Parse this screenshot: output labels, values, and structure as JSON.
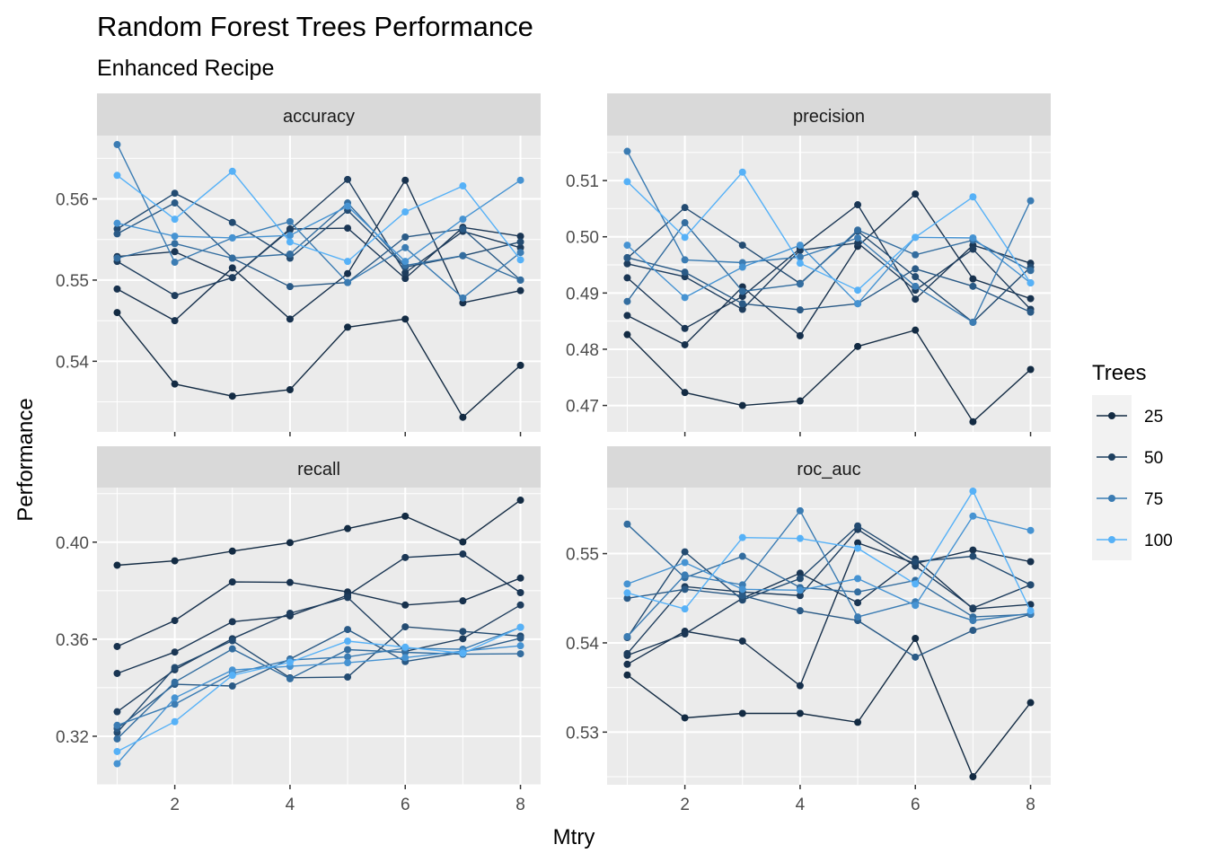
{
  "chart_data": {
    "type": "line",
    "title": "Random Forest Trees Performance",
    "subtitle": "Enhanced Recipe",
    "xlabel": "Mtry",
    "ylabel": "Performance",
    "legend": {
      "title": "Trees",
      "entries": [
        "25",
        "50",
        "75",
        "100"
      ],
      "colors": [
        "#132b43",
        "#1d3f5f",
        "#3b7cb3",
        "#56b1f7"
      ],
      "placement": "right"
    },
    "x": [
      1,
      2,
      3,
      4,
      5,
      6,
      7,
      8
    ],
    "xticks": [
      2,
      4,
      6,
      8
    ],
    "facets": [
      {
        "name": "accuracy",
        "ylim": [
          0.5313,
          0.5678
        ],
        "yticks": [
          0.54,
          0.55,
          0.56
        ],
        "ytick_labels": [
          "0.54",
          "0.55",
          "0.56"
        ],
        "series": [
          {
            "name": "25",
            "color": "#132b43",
            "values": [
              0.546,
              0.5372,
              0.5357,
              0.5365,
              0.5442,
              0.5452,
              0.5331,
              0.5395
            ]
          },
          {
            "name": "25",
            "color": "#17314d",
            "values": [
              0.5489,
              0.545,
              0.5515,
              0.5452,
              0.5508,
              0.5623,
              0.5472,
              0.5487
            ]
          },
          {
            "name": "25",
            "color": "#1a3654",
            "values": [
              0.5529,
              0.5535,
              0.5503,
              0.5563,
              0.5564,
              0.5502,
              0.5565,
              0.5554
            ]
          },
          {
            "name": "50",
            "color": "#1e3d5d",
            "values": [
              0.5523,
              0.5481,
              0.5503,
              0.5562,
              0.5624,
              0.5509,
              0.556,
              0.554
            ]
          },
          {
            "name": "50",
            "color": "#234b71",
            "values": [
              0.5563,
              0.5607,
              0.5571,
              0.5527,
              0.5586,
              0.5516,
              0.553,
              0.5547
            ]
          },
          {
            "name": "50",
            "color": "#2a5a86",
            "values": [
              0.5557,
              0.5595,
              0.5527,
              0.5492,
              0.5497,
              0.5553,
              0.5563,
              0.55
            ]
          },
          {
            "name": "75",
            "color": "#336d9f",
            "values": [
              0.5527,
              0.5545,
              0.5527,
              0.5532,
              0.5595,
              0.5518,
              0.553,
              0.55
            ]
          },
          {
            "name": "75",
            "color": "#3b7cb3",
            "values": [
              0.5667,
              0.5522,
              0.5552,
              0.5572,
              0.5497,
              0.554,
              0.5478,
              0.5534
            ]
          },
          {
            "name": "100",
            "color": "#4693d2",
            "values": [
              0.557,
              0.5554,
              0.5552,
              0.5555,
              0.5591,
              0.5523,
              0.5575,
              0.5623
            ]
          },
          {
            "name": "100",
            "color": "#56b1f7",
            "values": [
              0.5629,
              0.5575,
              0.5634,
              0.5547,
              0.5523,
              0.5584,
              0.5616,
              0.5525
            ]
          }
        ]
      },
      {
        "name": "precision",
        "ylim": [
          0.4653,
          0.518
        ],
        "yticks": [
          0.47,
          0.48,
          0.49,
          0.5,
          0.51
        ],
        "ytick_labels": [
          "0.47",
          "0.48",
          "0.49",
          "0.50",
          "0.51"
        ],
        "series": [
          {
            "name": "25",
            "color": "#132b43",
            "values": [
              0.4826,
              0.4723,
              0.47,
              0.4708,
              0.4805,
              0.4834,
              0.4671,
              0.4764
            ]
          },
          {
            "name": "25",
            "color": "#17314d",
            "values": [
              0.486,
              0.4808,
              0.4911,
              0.4824,
              0.4983,
              0.5076,
              0.4925,
              0.489
            ]
          },
          {
            "name": "25",
            "color": "#1a3654",
            "values": [
              0.4927,
              0.4837,
              0.4894,
              0.4979,
              0.5057,
              0.4889,
              0.4985,
              0.4953
            ]
          },
          {
            "name": "50",
            "color": "#1e3d5d",
            "values": [
              0.4952,
              0.4929,
              0.4871,
              0.4976,
              0.4989,
              0.4905,
              0.4978,
              0.4871
            ]
          },
          {
            "name": "50",
            "color": "#234b71",
            "values": [
              0.4962,
              0.5052,
              0.4985,
              0.4917,
              0.501,
              0.4929,
              0.4848,
              0.4946
            ]
          },
          {
            "name": "50",
            "color": "#2a5a86",
            "values": [
              0.4963,
              0.4937,
              0.4881,
              0.487,
              0.4881,
              0.4943,
              0.4912,
              0.4866
            ]
          },
          {
            "name": "75",
            "color": "#336d9f",
            "values": [
              0.4885,
              0.5025,
              0.4903,
              0.4916,
              0.5012,
              0.4968,
              0.4994,
              0.494
            ]
          },
          {
            "name": "75",
            "color": "#3b7cb3",
            "values": [
              0.5152,
              0.4959,
              0.4954,
              0.4964,
              0.4998,
              0.4912,
              0.4848,
              0.5064
            ]
          },
          {
            "name": "100",
            "color": "#4693d2",
            "values": [
              0.4985,
              0.4892,
              0.4946,
              0.4985,
              0.4881,
              0.4999,
              0.4998,
              0.4918
            ]
          },
          {
            "name": "100",
            "color": "#56b1f7",
            "values": [
              0.5098,
              0.4999,
              0.5115,
              0.4953,
              0.4905,
              0.4999,
              0.5071,
              0.4918
            ]
          }
        ]
      },
      {
        "name": "recall",
        "ylim": [
          0.3,
          0.4225
        ],
        "yticks": [
          0.32,
          0.36,
          0.4
        ],
        "ytick_labels": [
          "0.32",
          "0.36",
          "0.40"
        ],
        "series": [
          {
            "name": "25",
            "color": "#132b43",
            "values": [
              0.3905,
              0.3923,
              0.3963,
              0.3998,
              0.4056,
              0.4107,
              0.4001,
              0.4173
            ]
          },
          {
            "name": "25",
            "color": "#17314d",
            "values": [
              0.357,
              0.3677,
              0.3836,
              0.3834,
              0.3795,
              0.3741,
              0.3758,
              0.3852
            ]
          },
          {
            "name": "25",
            "color": "#1a3654",
            "values": [
              0.3459,
              0.3547,
              0.3672,
              0.3696,
              0.3781,
              0.3937,
              0.3951,
              0.3792
            ]
          },
          {
            "name": "50",
            "color": "#1e3d5d",
            "values": [
              0.3301,
              0.3474,
              0.3602,
              0.3707,
              0.3772,
              0.355,
              0.3602,
              0.3741
            ]
          },
          {
            "name": "50",
            "color": "#234b71",
            "values": [
              0.3215,
              0.3483,
              0.3594,
              0.3441,
              0.3444,
              0.3651,
              0.3632,
              0.3613
            ]
          },
          {
            "name": "50",
            "color": "#2a5a86",
            "values": [
              0.3232,
              0.3414,
              0.3407,
              0.3518,
              0.364,
              0.3508,
              0.3546,
              0.3604
            ]
          },
          {
            "name": "75",
            "color": "#336d9f",
            "values": [
              0.3189,
              0.3423,
              0.356,
              0.3437,
              0.3557,
              0.3546,
              0.3538,
              0.354
            ]
          },
          {
            "name": "75",
            "color": "#3b7cb3",
            "values": [
              0.3245,
              0.3332,
              0.3459,
              0.3514,
              0.3527,
              0.3563,
              0.3559,
              0.3649
            ]
          },
          {
            "name": "100",
            "color": "#4693d2",
            "values": [
              0.3087,
              0.3358,
              0.3473,
              0.3488,
              0.3503,
              0.3524,
              0.3551,
              0.3573
            ]
          },
          {
            "name": "100",
            "color": "#56b1f7",
            "values": [
              0.3137,
              0.326,
              0.3451,
              0.3505,
              0.3592,
              0.3567,
              0.3542,
              0.3649
            ]
          }
        ]
      },
      {
        "name": "roc_auc",
        "ylim": [
          0.5241,
          0.5574
        ],
        "yticks": [
          0.53,
          0.54,
          0.55
        ],
        "ytick_labels": [
          "0.53",
          "0.54",
          "0.55"
        ],
        "series": [
          {
            "name": "25",
            "color": "#132b43",
            "values": [
              0.5364,
              0.5316,
              0.5321,
              0.5321,
              0.5311,
              0.5405,
              0.525,
              0.5333
            ]
          },
          {
            "name": "25",
            "color": "#17314d",
            "values": [
              0.5376,
              0.5413,
              0.5402,
              0.5352,
              0.5512,
              0.5489,
              0.5504,
              0.5491
            ]
          },
          {
            "name": "25",
            "color": "#1a3654",
            "values": [
              0.5386,
              0.541,
              0.545,
              0.5478,
              0.5445,
              0.5494,
              0.5438,
              0.5443
            ]
          },
          {
            "name": "50",
            "color": "#1e3d5d",
            "values": [
              0.5388,
              0.5463,
              0.5457,
              0.5453,
              0.5527,
              0.5486,
              0.5439,
              0.5465
            ]
          },
          {
            "name": "50",
            "color": "#234b71",
            "values": [
              0.5406,
              0.5502,
              0.5448,
              0.5472,
              0.5531,
              0.5491,
              0.5497,
              0.5465
            ]
          },
          {
            "name": "50",
            "color": "#2a5a86",
            "values": [
              0.545,
              0.546,
              0.5453,
              0.5436,
              0.5425,
              0.5384,
              0.5414,
              0.5432
            ]
          },
          {
            "name": "75",
            "color": "#336d9f",
            "values": [
              0.5533,
              0.5473,
              0.5497,
              0.5462,
              0.5457,
              0.547,
              0.5429,
              0.5432
            ]
          },
          {
            "name": "75",
            "color": "#3b7cb3",
            "values": [
              0.5407,
              0.5476,
              0.5465,
              0.5548,
              0.5429,
              0.5446,
              0.5425,
              0.5433
            ]
          },
          {
            "name": "100",
            "color": "#4693d2",
            "values": [
              0.5466,
              0.549,
              0.546,
              0.5459,
              0.5472,
              0.5442,
              0.5542,
              0.5526
            ]
          },
          {
            "name": "100",
            "color": "#56b1f7",
            "values": [
              0.5456,
              0.5438,
              0.5518,
              0.5517,
              0.5506,
              0.5466,
              0.557,
              0.5436
            ]
          }
        ]
      }
    ]
  }
}
